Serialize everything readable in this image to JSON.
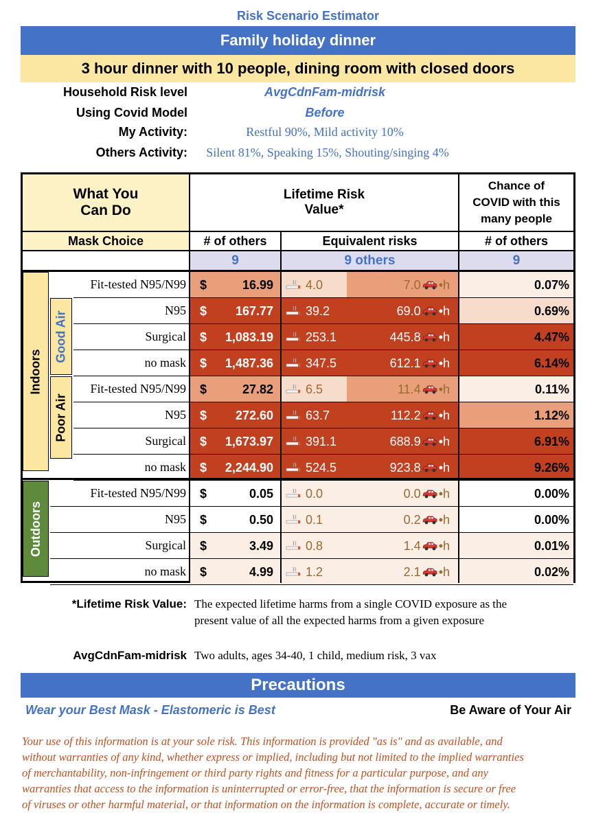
{
  "app_title": "Risk Scenario Estimator",
  "scenario_title": "Family holiday dinner",
  "scenario_detail": "3 hour dinner with 10 people, dining room with closed doors",
  "info": {
    "household_label": "Household Risk level",
    "household_value": "AvgCdnFam-midrisk",
    "model_label": "Using Covid Model",
    "model_value": "Before",
    "my_activity_label": "My Activity:",
    "my_activity_value": "Restful 90%, Mild activity 10%",
    "others_activity_label": "Others Activity:",
    "others_activity_value": "Silent 81%, Speaking 15%, Shouting/singing 4%"
  },
  "table": {
    "what_you_can_do": "What You Can Do",
    "what_line1": "What You",
    "what_line2": "Can Do",
    "lifetime_line1": "Lifetime Risk",
    "lifetime_line2": "Value*",
    "chance_line1": "Chance of",
    "chance_line2": "COVID with this",
    "chance_line3": "many people",
    "mask_choice": "Mask Choice",
    "others_col1": "# of others",
    "equiv_risks": "Equivalent risks",
    "others_col3": "# of others",
    "others_count1": "9",
    "others_count2": "9 others",
    "others_count3": "9",
    "dollar_sign": "$",
    "cig_icon": "cigarette-icon",
    "car_icon": "car-icon",
    "car_suffix": "•h",
    "groups": {
      "indoors": "Indoors",
      "good_air": "Good Air",
      "poor_air": "Poor Air",
      "outdoors": "Outdoors"
    },
    "rows": [
      {
        "mask": "Fit-tested N95/N99",
        "value": "16.99",
        "cig": "4.0",
        "car": "7.0",
        "pct": "0.07%"
      },
      {
        "mask": "N95",
        "value": "167.77",
        "cig": "39.2",
        "car": "69.0",
        "pct": "0.69%"
      },
      {
        "mask": "Surgical",
        "value": "1,083.19",
        "cig": "253.1",
        "car": "445.8",
        "pct": "4.47%"
      },
      {
        "mask": "no mask",
        "value": "1,487.36",
        "cig": "347.5",
        "car": "612.1",
        "pct": "6.14%"
      },
      {
        "mask": "Fit-tested N95/N99",
        "value": "27.82",
        "cig": "6.5",
        "car": "11.4",
        "pct": "0.11%"
      },
      {
        "mask": "N95",
        "value": "272.60",
        "cig": "63.7",
        "car": "112.2",
        "pct": "1.12%"
      },
      {
        "mask": "Surgical",
        "value": "1,673.97",
        "cig": "391.1",
        "car": "688.9",
        "pct": "6.91%"
      },
      {
        "mask": "no mask",
        "value": "2,244.90",
        "cig": "524.5",
        "car": "923.8",
        "pct": "9.26%"
      },
      {
        "mask": "Fit-tested N95/N99",
        "value": "0.05",
        "cig": "0.0",
        "car": "0.0",
        "pct": "0.00%"
      },
      {
        "mask": "N95",
        "value": "0.50",
        "cig": "0.1",
        "car": "0.2",
        "pct": "0.00%"
      },
      {
        "mask": "Surgical",
        "value": "3.49",
        "cig": "0.8",
        "car": "1.4",
        "pct": "0.01%"
      },
      {
        "mask": "no mask",
        "value": "4.99",
        "cig": "1.2",
        "car": "2.1",
        "pct": "0.02%"
      }
    ]
  },
  "footnote": {
    "lrv_label": "*Lifetime Risk Value:",
    "lrv_line1": "The expected lifetime harms from a single COVID exposure as the",
    "lrv_line2": "present value of all the expected harms from a given exposure",
    "household_label": "AvgCdnFam-midrisk",
    "household_text": "Two adults, ages 34-40, 1 child, medium risk, 3 vax"
  },
  "precautions": {
    "title": "Precautions",
    "mask_tip": "Wear your Best Mask - Elastomeric is Best",
    "air_tip": "Be Aware of Your Air"
  },
  "disclaimer": {
    "line1": "Your use of this information is at your sole risk. This information is provided \"as is\" and as available, and",
    "line2": "without warranties of any kind, whether express or implied, including but not limited to the implied warranties",
    "line3": "of merchantability, non-infringement or third party rights and fitness for a particular purpose, and any",
    "line4": "warranties that access to the information is uninterrupted or error-free, that the information is secure or free",
    "line5": "of viruses or other harmful material, or that information on the information is complete, accurate or timely."
  },
  "colors": {
    "blue": "#4472c4",
    "yellow_bar": "#fbe7a1",
    "light_yellow": "#fdf2c6",
    "lavender": "#dcdcee",
    "green": "#5e8a3b",
    "disclaimer": "#c0501f",
    "heat_dark": "#c0401f",
    "heat_medium": "#e9a07a",
    "heat_light": "#f8dccb",
    "heat_pale": "#fbeee4"
  }
}
